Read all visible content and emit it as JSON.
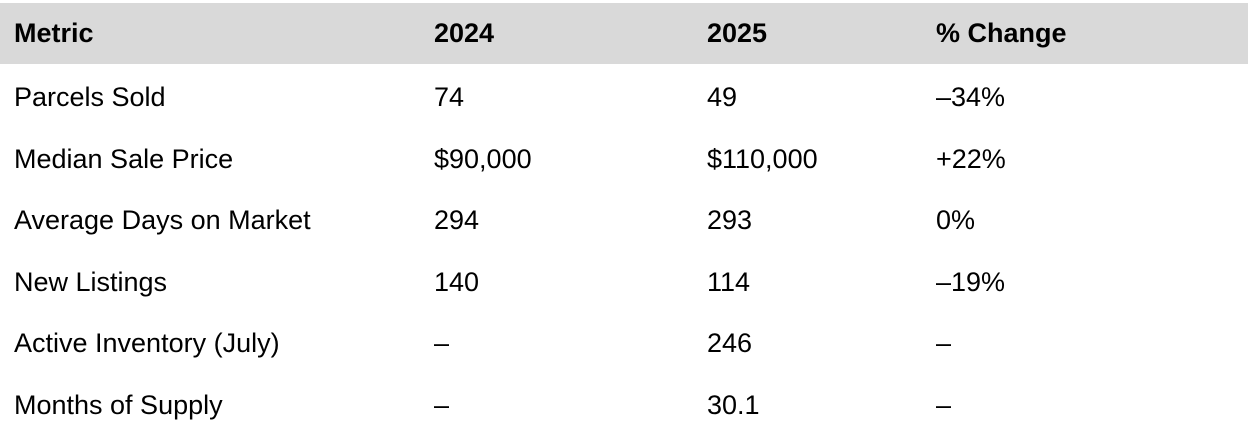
{
  "table": {
    "headers": [
      "Metric",
      "2024",
      "2025",
      "% Change"
    ],
    "rows": [
      [
        "Parcels Sold",
        "74",
        "49",
        "–34%"
      ],
      [
        "Median Sale Price",
        "$90,000",
        "$110,000",
        "+22%"
      ],
      [
        "Average Days on Market",
        "294",
        "293",
        "0%"
      ],
      [
        "New Listings",
        "140",
        "114",
        "–19%"
      ],
      [
        "Active Inventory (July)",
        "–",
        "246",
        "–"
      ],
      [
        "Months of Supply",
        "–",
        "30.1",
        "–"
      ]
    ]
  },
  "colors": {
    "header_background": "#d9d9d9",
    "text": "#000000",
    "page_background": "#ffffff"
  }
}
